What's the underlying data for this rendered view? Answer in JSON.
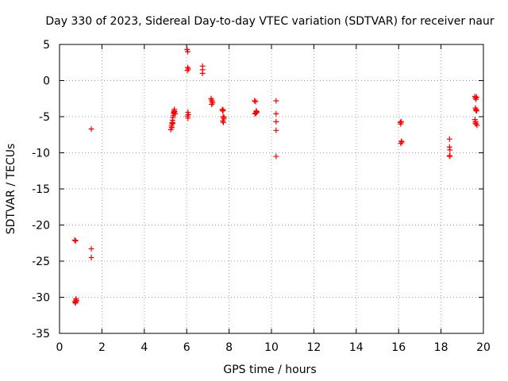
{
  "chart_data": {
    "type": "scatter",
    "title": "Day 330 of 2023, Sidereal Day-to-day VTEC variation (SDTVAR) for receiver naur",
    "xlabel": "GPS time / hours",
    "ylabel": "SDTVAR / TECUs",
    "xlim": [
      0,
      20
    ],
    "ylim": [
      -35,
      5
    ],
    "xticks": [
      0,
      2,
      4,
      6,
      8,
      10,
      12,
      14,
      16,
      18,
      20
    ],
    "yticks": [
      5,
      0,
      -5,
      -10,
      -15,
      -20,
      -25,
      -30,
      -35
    ],
    "grid": true,
    "marker": "plus",
    "color": "#ff0000",
    "series": [
      {
        "name": "SDTVAR",
        "x": [
          0.72,
          0.76,
          0.78,
          0.72,
          0.75,
          0.78,
          0.8,
          0.76,
          1.5,
          1.5,
          1.5,
          5.25,
          5.28,
          5.3,
          5.32,
          5.33,
          5.35,
          5.37,
          5.38,
          5.4,
          5.42,
          5.43,
          5.45,
          5.3,
          5.35,
          5.4,
          6.02,
          6.05,
          6.08,
          6.03,
          6.06,
          6.04,
          6.06,
          6.08,
          6.05,
          6.75,
          6.75,
          6.75,
          7.15,
          7.18,
          7.2,
          7.22,
          7.18,
          7.68,
          7.7,
          7.72,
          7.75,
          7.7,
          7.73,
          7.76,
          7.72,
          9.2,
          9.25,
          9.28,
          9.3,
          9.22,
          9.26,
          9.3,
          10.22,
          10.22,
          10.22,
          10.22,
          10.22,
          16.08,
          16.1,
          16.12,
          16.15,
          16.1,
          16.13,
          18.4,
          18.4,
          18.42,
          18.4,
          18.42,
          19.6,
          19.62,
          19.65,
          19.68,
          19.62,
          19.65,
          19.68,
          19.6,
          19.63,
          19.66,
          19.7,
          19.62,
          19.65
        ],
        "y": [
          -22.1,
          -22.2,
          -30.2,
          -30.6,
          -30.8,
          -30.4,
          -30.5,
          -30.7,
          -6.7,
          -23.3,
          -24.5,
          -6.8,
          -6.3,
          -6.0,
          -5.8,
          -5.5,
          -5.1,
          -4.8,
          -4.5,
          -4.2,
          -4.0,
          -4.3,
          -4.6,
          -6.5,
          -5.9,
          -4.4,
          4.3,
          4.0,
          1.6,
          1.4,
          -4.4,
          -4.9,
          -5.2,
          -4.7,
          1.8,
          2.0,
          1.5,
          1.0,
          -2.5,
          -2.7,
          -2.9,
          -3.1,
          -3.3,
          -4.0,
          -4.2,
          -5.0,
          -5.3,
          -5.6,
          -5.8,
          -5.1,
          -4.1,
          -2.8,
          -2.9,
          -4.2,
          -4.4,
          -4.6,
          -4.5,
          -4.3,
          -2.8,
          -4.6,
          -5.7,
          -6.9,
          -10.5,
          -5.8,
          -6.0,
          -5.7,
          -8.5,
          -8.7,
          -8.4,
          -8.1,
          -9.2,
          -9.6,
          -10.4,
          -10.5,
          -2.2,
          -2.4,
          -2.6,
          -2.3,
          -3.8,
          -4.0,
          -4.2,
          -5.4,
          -5.7,
          -6.0,
          -6.2,
          -5.9,
          -4.1
        ]
      }
    ]
  }
}
